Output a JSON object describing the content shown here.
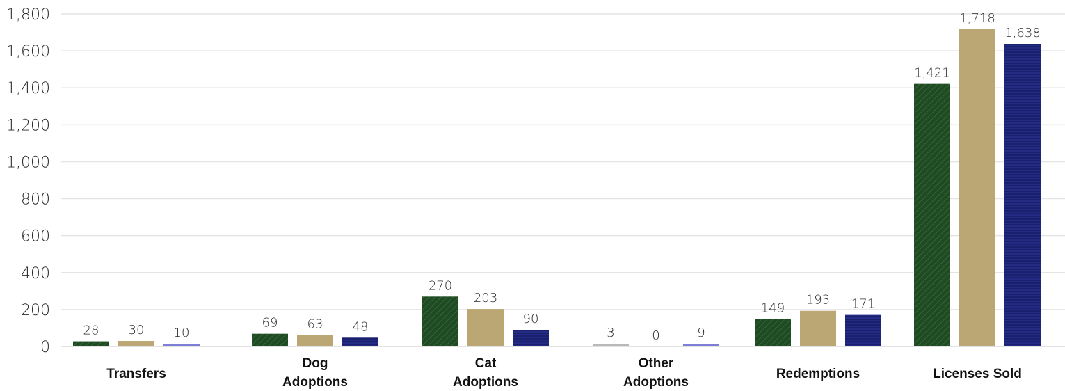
{
  "chart_data": {
    "type": "bar",
    "categories": [
      "Transfers",
      "Dog Adoptions",
      "Cat Adoptions",
      "Other Adoptions",
      "Redemptions",
      "Licenses Sold"
    ],
    "category_lines": [
      [
        "Transfers"
      ],
      [
        "Dog",
        "Adoptions"
      ],
      [
        "Cat",
        "Adoptions"
      ],
      [
        "Other",
        "Adoptions"
      ],
      [
        "Redemptions"
      ],
      [
        "Licenses Sold"
      ]
    ],
    "series": [
      {
        "color": "#1f4a24",
        "pattern": "diagonal-hatch",
        "values": [
          28,
          69,
          270,
          3,
          149,
          1421
        ],
        "labels": [
          "28",
          "69",
          "270",
          "3",
          "149",
          "1,421"
        ]
      },
      {
        "color": "#bba774",
        "pattern": "solid",
        "values": [
          30,
          63,
          203,
          0,
          193,
          1718
        ],
        "labels": [
          "30",
          "63",
          "203",
          "0",
          "193",
          "1,718"
        ]
      },
      {
        "color": "#1a1f6e",
        "pattern": "horizontal-stripes",
        "values": [
          10,
          48,
          90,
          9,
          171,
          1638
        ],
        "labels": [
          "10",
          "48",
          "90",
          "9",
          "171",
          "1,638"
        ]
      }
    ],
    "ylim": [
      0,
      1800
    ],
    "yticks": [
      0,
      200,
      400,
      600,
      800,
      1000,
      1200,
      1400,
      1600,
      1800
    ],
    "ytick_labels": [
      "0",
      "200",
      "400",
      "600",
      "800",
      "1,000",
      "1,200",
      "1,400",
      "1,600",
      "1,800"
    ],
    "grid": true,
    "legend": "none",
    "title": "",
    "xlabel": "",
    "ylabel": ""
  }
}
